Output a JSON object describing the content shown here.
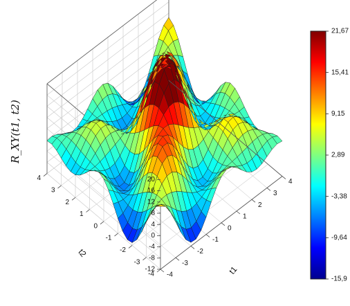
{
  "chart_data": {
    "type": "surface",
    "zlabel": "R_XY(t1, t2)",
    "xlabel": "t1",
    "ylabel": "t2",
    "xlim": [
      -4,
      4
    ],
    "ylim": [
      -4,
      4
    ],
    "zlim": [
      -12,
      20
    ],
    "x_ticks": [
      -4,
      -3,
      -2,
      -1,
      0,
      1,
      2,
      3,
      4
    ],
    "y_ticks": [
      -4,
      -3,
      -2,
      -1,
      0,
      1,
      2,
      3,
      4
    ],
    "z_ticks": [
      -12,
      -8,
      -4,
      0,
      4,
      8,
      12,
      16,
      20
    ],
    "colorbar": {
      "min": -15.9,
      "max": 21.67,
      "tick_labels": [
        "21,67",
        "15,41",
        "9,15",
        "2,89",
        "-3,38",
        "-9,64",
        "-15,9"
      ],
      "colormap": "jet"
    },
    "grid": true,
    "peak": {
      "t1": 0,
      "t2": 0,
      "value": 21.67
    }
  }
}
